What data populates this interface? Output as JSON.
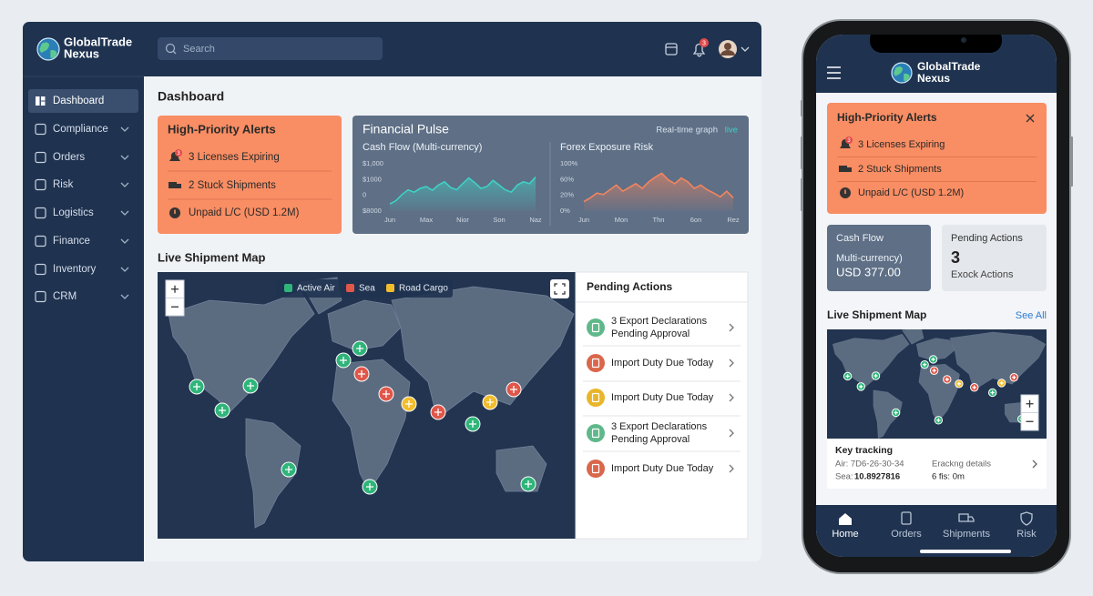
{
  "desktop": {
    "brand": [
      "GlobalTrade",
      "Nexus"
    ],
    "search_placeholder": "Search",
    "notification_badge": 3,
    "nav": [
      "Dashboard",
      "Compliance",
      "Orders",
      "Risk",
      "Logistics",
      "Finance",
      "Inventory",
      "CRM"
    ],
    "page_title": "Dashboard",
    "alerts": {
      "title": "High-Priority Alerts",
      "badge": 3,
      "items": [
        "3 Licenses Expiring",
        "2 Stuck Shipments",
        "Unpaid L/C (USD 1.2M)"
      ]
    },
    "financial_pulse": {
      "title": "Financial Pulse",
      "realtime_label": "Real-time graph",
      "live_label": "live",
      "cash_flow": {
        "title": "Cash Flow (Multi-currency)",
        "ylabels": [
          "$1,000",
          "$1000",
          "0",
          "$8000"
        ],
        "xlabels": [
          "Jun",
          "Max",
          "Nior",
          "Son",
          "Naz"
        ],
        "ylim": [
          0,
          100
        ],
        "color": "#3fd1c4",
        "values": [
          15,
          22,
          35,
          45,
          40,
          48,
          52,
          44,
          55,
          62,
          50,
          45,
          58,
          70,
          60,
          48,
          52,
          65,
          55,
          45,
          40,
          55,
          62,
          58,
          72
        ]
      },
      "forex": {
        "title": "Forex Exposure Risk",
        "ylabels": [
          "100%",
          "60%",
          "20%",
          "0%"
        ],
        "xlabels": [
          "Jun",
          "Mon",
          "Thn",
          "6on",
          "Rez"
        ],
        "ylim": [
          0,
          100
        ],
        "color": "#f2855f",
        "values": [
          20,
          28,
          38,
          35,
          45,
          55,
          42,
          50,
          58,
          48,
          62,
          72,
          80,
          66,
          58,
          70,
          62,
          48,
          55,
          45,
          38,
          30,
          42,
          28
        ]
      }
    },
    "map": {
      "title": "Live Shipment Map",
      "legend": [
        {
          "name": "Active Air",
          "color": "#2fb57a"
        },
        {
          "name": "Sea",
          "color": "#e0574a"
        },
        {
          "name": "Road Cargo",
          "color": "#f2bd2c"
        }
      ]
    },
    "pending": {
      "title": "Pending Actions",
      "items": [
        {
          "lines": [
            "3 Export Declarations",
            "Pending Approval"
          ],
          "color": "#5fb88a"
        },
        {
          "lines": [
            "Import Duty Due Today"
          ],
          "color": "#d9674c"
        },
        {
          "lines": [
            "Import Duty Due Today"
          ],
          "color": "#e9b52a"
        },
        {
          "lines": [
            "3 Export Declarations",
            "Pending Approval"
          ],
          "color": "#5fb88a"
        },
        {
          "lines": [
            "Import Duty Due Today"
          ],
          "color": "#d9674c"
        }
      ]
    }
  },
  "mobile": {
    "brand": [
      "GlobalTrade",
      "Nexus"
    ],
    "alerts": {
      "title": "High-Priority Alerts",
      "badge": 3,
      "items": [
        "3 Licenses Expiring",
        "2 Stuck Shipments",
        "Unpaid L/C (USD 1.2M)"
      ]
    },
    "cash_card": {
      "title": "Cash Flow",
      "subtitle": "Multi-currency)",
      "value": "USD 377.00"
    },
    "pending_card": {
      "title": "Pending Actions",
      "count": 3,
      "label": "Exock Actions"
    },
    "map_title": "Live Shipment Map",
    "see_all": "See All",
    "tracking": {
      "title": "Key tracking",
      "air": "Air: 7D6-26-30-34",
      "sea_label": "Sea:",
      "sea_value": "10.8927816",
      "details": "Erackng details",
      "eta": "6 fis: 0m"
    },
    "tabs": [
      "Home",
      "Orders",
      "Shipments",
      "Risk"
    ]
  }
}
